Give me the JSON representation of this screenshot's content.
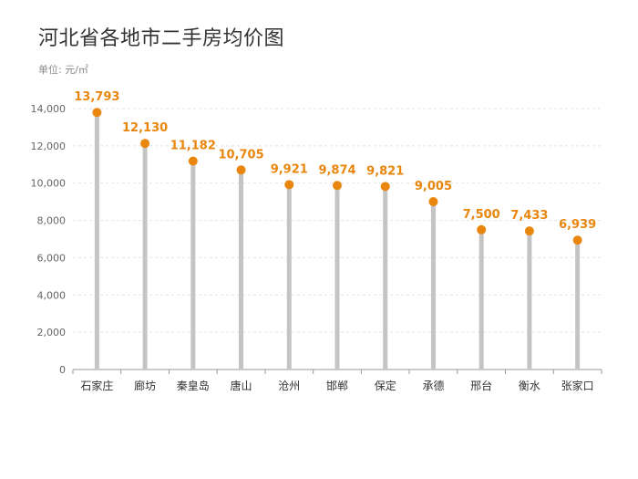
{
  "title": "河北省各地市二手房均价图",
  "unit_label": "单位: 元/㎡",
  "colors": {
    "marker": "#E8860D",
    "stem": "#C4C4C4",
    "grid": "#E2E2E2",
    "axis": "#999999",
    "value_text": "#E8860D"
  },
  "chart_data": {
    "type": "lollipop",
    "title": "河北省各地市二手房均价图",
    "ylabel": "单位: 元/㎡",
    "ylim": [
      0,
      14000
    ],
    "yticks": [
      0,
      2000,
      4000,
      6000,
      8000,
      10000,
      12000,
      14000
    ],
    "ytick_labels": [
      "0",
      "2,000",
      "4,000",
      "6,000",
      "8,000",
      "10,000",
      "12,000",
      "14,000"
    ],
    "grid": true,
    "categories": [
      "石家庄",
      "廊坊",
      "秦皇岛",
      "唐山",
      "沧州",
      "邯郸",
      "保定",
      "承德",
      "邢台",
      "衡水",
      "张家口"
    ],
    "values": [
      13793,
      12130,
      11182,
      10705,
      9921,
      9874,
      9821,
      9005,
      7500,
      7433,
      6939
    ],
    "value_labels": [
      "13,793",
      "12,130",
      "11,182",
      "10,705",
      "9,921",
      "9,874",
      "9,821",
      "9,005",
      "7,500",
      "7,433",
      "6,939"
    ]
  }
}
